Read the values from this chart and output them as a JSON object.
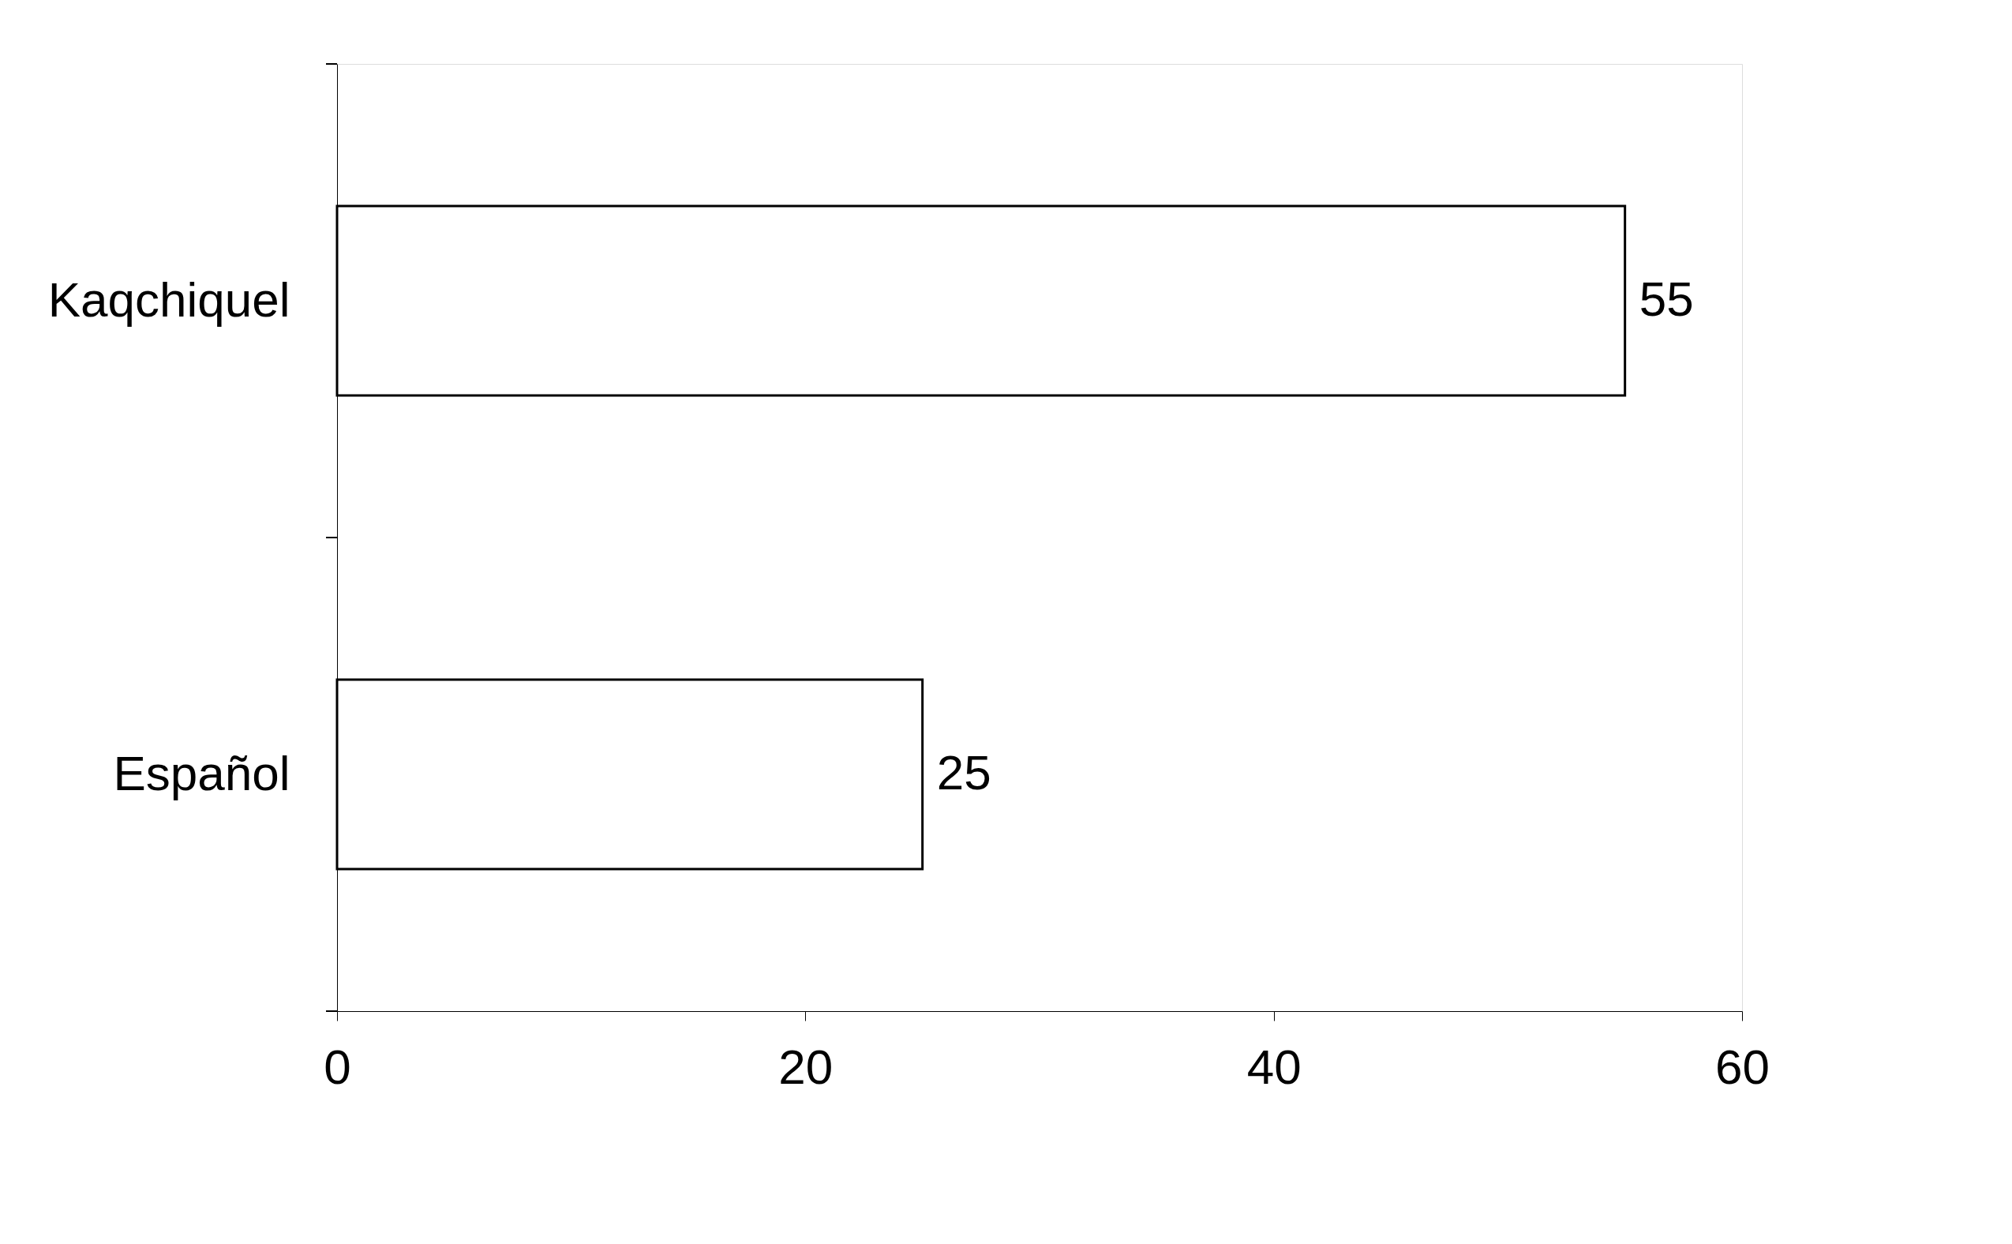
{
  "chart_data": {
    "type": "bar",
    "orientation": "horizontal",
    "categories": [
      "Kaqchiquel",
      "Español"
    ],
    "series": [
      {
        "color": "#ffffff",
        "values": [
          55,
          25
        ]
      }
    ],
    "xlim": [
      0,
      60
    ],
    "xticks": [
      0,
      20,
      40,
      60
    ],
    "grid": false,
    "legend": false,
    "data_labels": true
  }
}
